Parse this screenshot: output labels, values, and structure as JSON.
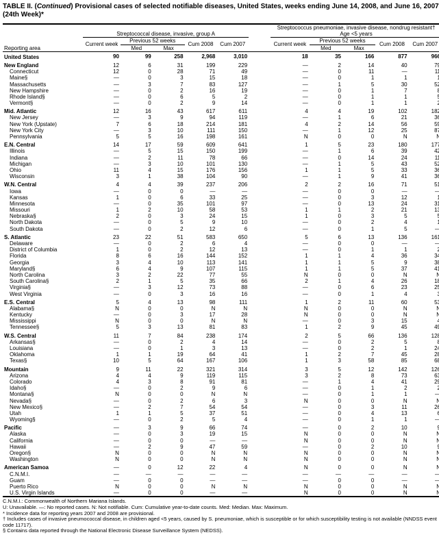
{
  "title_prefix": "TABLE II. (",
  "title_italic": "Continued",
  "title_rest": ") Provisional cases of selected notifiable diseases, United States, weeks ending June 14, 2008, and June 16, 2007 (24th Week)*",
  "disease_a": "Streptococcal disease, invasive, group A",
  "disease_b_line1": "Streptococcus pneumoniae, invasive disease, nondrug resistant†",
  "disease_b_line2": "Age <5 years",
  "col_labels": {
    "reporting": "Reporting area",
    "current": "Current week",
    "previous": "Previous 52 weeks",
    "med": "Med",
    "max": "Max",
    "cum08": "Cum 2008",
    "cum07": "Cum 2007"
  },
  "rows": [
    {
      "l": "United States",
      "a": [
        "90",
        "99",
        "258",
        "2,968",
        "3,010"
      ],
      "b": [
        "18",
        "35",
        "166",
        "877",
        "966"
      ],
      "s": 1,
      "first": 1
    },
    {
      "l": "New England",
      "a": [
        "12",
        "6",
        "31",
        "199",
        "229"
      ],
      "b": [
        "—",
        "2",
        "14",
        "40",
        "79"
      ],
      "s": 1
    },
    {
      "l": "Connecticut",
      "a": [
        "12",
        "0",
        "28",
        "71",
        "49"
      ],
      "b": [
        "—",
        "0",
        "11",
        "—",
        "11"
      ]
    },
    {
      "l": "Maine§",
      "a": [
        "—",
        "0",
        "3",
        "15",
        "18"
      ],
      "b": [
        "—",
        "0",
        "1",
        "1",
        "1"
      ]
    },
    {
      "l": "Massachusetts",
      "a": [
        "—",
        "3",
        "7",
        "83",
        "127"
      ],
      "b": [
        "—",
        "1",
        "5",
        "30",
        "52"
      ]
    },
    {
      "l": "New Hampshire",
      "a": [
        "—",
        "0",
        "2",
        "16",
        "19"
      ],
      "b": [
        "—",
        "0",
        "1",
        "7",
        "8"
      ]
    },
    {
      "l": "Rhode Island§",
      "a": [
        "—",
        "0",
        "6",
        "5",
        "2"
      ],
      "b": [
        "—",
        "0",
        "1",
        "1",
        "5"
      ]
    },
    {
      "l": "Vermont§",
      "a": [
        "—",
        "0",
        "2",
        "9",
        "14"
      ],
      "b": [
        "—",
        "0",
        "1",
        "1",
        "2"
      ]
    },
    {
      "l": "Mid. Atlantic",
      "a": [
        "12",
        "16",
        "43",
        "617",
        "611"
      ],
      "b": [
        "4",
        "4",
        "19",
        "102",
        "182"
      ],
      "s": 1
    },
    {
      "l": "New Jersey",
      "a": [
        "—",
        "3",
        "9",
        "94",
        "119"
      ],
      "b": [
        "—",
        "1",
        "6",
        "21",
        "36"
      ]
    },
    {
      "l": "New York (Upstate)",
      "a": [
        "7",
        "6",
        "18",
        "214",
        "181"
      ],
      "b": [
        "4",
        "2",
        "14",
        "56",
        "59"
      ]
    },
    {
      "l": "New York City",
      "a": [
        "—",
        "3",
        "10",
        "111",
        "150"
      ],
      "b": [
        "—",
        "1",
        "12",
        "25",
        "87"
      ]
    },
    {
      "l": "Pennsylvania",
      "a": [
        "5",
        "5",
        "16",
        "198",
        "161"
      ],
      "b": [
        "N",
        "0",
        "0",
        "N",
        "N"
      ]
    },
    {
      "l": "E.N. Central",
      "a": [
        "14",
        "17",
        "59",
        "609",
        "641"
      ],
      "b": [
        "1",
        "5",
        "23",
        "180",
        "177"
      ],
      "s": 1
    },
    {
      "l": "Illinois",
      "a": [
        "—",
        "5",
        "15",
        "150",
        "199"
      ],
      "b": [
        "—",
        "1",
        "6",
        "39",
        "42"
      ]
    },
    {
      "l": "Indiana",
      "a": [
        "—",
        "2",
        "11",
        "78",
        "66"
      ],
      "b": [
        "—",
        "0",
        "14",
        "24",
        "11"
      ]
    },
    {
      "l": "Michigan",
      "a": [
        "—",
        "3",
        "10",
        "101",
        "130"
      ],
      "b": [
        "—",
        "1",
        "5",
        "43",
        "52"
      ]
    },
    {
      "l": "Ohio",
      "a": [
        "11",
        "4",
        "15",
        "176",
        "156"
      ],
      "b": [
        "1",
        "1",
        "5",
        "33",
        "36"
      ]
    },
    {
      "l": "Wisconsin",
      "a": [
        "3",
        "1",
        "38",
        "104",
        "90"
      ],
      "b": [
        "—",
        "1",
        "9",
        "41",
        "36"
      ]
    },
    {
      "l": "W.N. Central",
      "a": [
        "4",
        "4",
        "39",
        "237",
        "206"
      ],
      "b": [
        "2",
        "2",
        "16",
        "71",
        "51"
      ],
      "s": 1
    },
    {
      "l": "Iowa",
      "a": [
        "—",
        "0",
        "0",
        "—",
        "—"
      ],
      "b": [
        "—",
        "0",
        "0",
        "—",
        "—"
      ]
    },
    {
      "l": "Kansas",
      "a": [
        "1",
        "0",
        "6",
        "33",
        "25"
      ],
      "b": [
        "—",
        "0",
        "3",
        "12",
        "1"
      ]
    },
    {
      "l": "Minnesota",
      "a": [
        "—",
        "0",
        "35",
        "101",
        "97"
      ],
      "b": [
        "—",
        "0",
        "13",
        "24",
        "31"
      ]
    },
    {
      "l": "Missouri",
      "a": [
        "1",
        "2",
        "10",
        "58",
        "53"
      ],
      "b": [
        "1",
        "1",
        "2",
        "21",
        "13"
      ]
    },
    {
      "l": "Nebraska§",
      "a": [
        "2",
        "0",
        "3",
        "24",
        "15"
      ],
      "b": [
        "1",
        "0",
        "3",
        "5",
        "5"
      ]
    },
    {
      "l": "North Dakota",
      "a": [
        "—",
        "0",
        "5",
        "9",
        "10"
      ],
      "b": [
        "—",
        "0",
        "2",
        "4",
        "1"
      ]
    },
    {
      "l": "South Dakota",
      "a": [
        "—",
        "0",
        "2",
        "12",
        "6"
      ],
      "b": [
        "—",
        "0",
        "1",
        "5",
        "—"
      ]
    },
    {
      "l": "S. Atlantic",
      "a": [
        "23",
        "22",
        "51",
        "583",
        "650"
      ],
      "b": [
        "5",
        "6",
        "13",
        "136",
        "161"
      ],
      "s": 1
    },
    {
      "l": "Delaware",
      "a": [
        "—",
        "0",
        "2",
        "6",
        "4"
      ],
      "b": [
        "—",
        "0",
        "0",
        "—",
        "—"
      ]
    },
    {
      "l": "District of Columbia",
      "a": [
        "1",
        "0",
        "2",
        "12",
        "13"
      ],
      "b": [
        "—",
        "0",
        "1",
        "1",
        "2"
      ]
    },
    {
      "l": "Florida",
      "a": [
        "8",
        "6",
        "16",
        "144",
        "152"
      ],
      "b": [
        "1",
        "1",
        "4",
        "36",
        "34"
      ]
    },
    {
      "l": "Georgia",
      "a": [
        "3",
        "4",
        "10",
        "113",
        "141"
      ],
      "b": [
        "1",
        "1",
        "5",
        "9",
        "38"
      ]
    },
    {
      "l": "Maryland§",
      "a": [
        "6",
        "4",
        "9",
        "107",
        "115"
      ],
      "b": [
        "1",
        "1",
        "5",
        "37",
        "41"
      ]
    },
    {
      "l": "North Carolina",
      "a": [
        "3",
        "2",
        "22",
        "77",
        "55"
      ],
      "b": [
        "N",
        "0",
        "0",
        "N",
        "N"
      ]
    },
    {
      "l": "South Carolina§",
      "a": [
        "2",
        "1",
        "5",
        "35",
        "66"
      ],
      "b": [
        "2",
        "1",
        "4",
        "26",
        "18"
      ]
    },
    {
      "l": "Virginia§",
      "a": [
        "—",
        "3",
        "12",
        "73",
        "88"
      ],
      "b": [
        "—",
        "0",
        "6",
        "23",
        "25"
      ]
    },
    {
      "l": "West Virginia",
      "a": [
        "—",
        "0",
        "3",
        "16",
        "16"
      ],
      "b": [
        "—",
        "0",
        "1",
        "4",
        "3"
      ]
    },
    {
      "l": "E.S. Central",
      "a": [
        "5",
        "4",
        "13",
        "98",
        "111"
      ],
      "b": [
        "1",
        "2",
        "11",
        "60",
        "53"
      ],
      "s": 1
    },
    {
      "l": "Alabama§",
      "a": [
        "N",
        "0",
        "0",
        "N",
        "N"
      ],
      "b": [
        "N",
        "0",
        "0",
        "N",
        "N"
      ]
    },
    {
      "l": "Kentucky",
      "a": [
        "—",
        "0",
        "3",
        "17",
        "28"
      ],
      "b": [
        "N",
        "0",
        "0",
        "N",
        "N"
      ]
    },
    {
      "l": "Mississippi",
      "a": [
        "N",
        "0",
        "0",
        "N",
        "N"
      ],
      "b": [
        "—",
        "0",
        "3",
        "15",
        "4"
      ]
    },
    {
      "l": "Tennessee§",
      "a": [
        "5",
        "3",
        "13",
        "81",
        "83"
      ],
      "b": [
        "1",
        "2",
        "9",
        "45",
        "49"
      ]
    },
    {
      "l": "W.S. Central",
      "a": [
        "11",
        "7",
        "84",
        "238",
        "174"
      ],
      "b": [
        "2",
        "5",
        "66",
        "136",
        "128"
      ],
      "s": 1
    },
    {
      "l": "Arkansas§",
      "a": [
        "—",
        "0",
        "2",
        "4",
        "14"
      ],
      "b": [
        "—",
        "0",
        "2",
        "5",
        "8"
      ]
    },
    {
      "l": "Louisiana",
      "a": [
        "—",
        "0",
        "1",
        "3",
        "13"
      ],
      "b": [
        "—",
        "0",
        "2",
        "1",
        "24"
      ]
    },
    {
      "l": "Oklahoma",
      "a": [
        "1",
        "1",
        "19",
        "64",
        "41"
      ],
      "b": [
        "1",
        "2",
        "7",
        "45",
        "28"
      ]
    },
    {
      "l": "Texas§",
      "a": [
        "10",
        "5",
        "64",
        "167",
        "106"
      ],
      "b": [
        "1",
        "3",
        "58",
        "85",
        "68"
      ]
    },
    {
      "l": "Mountain",
      "a": [
        "9",
        "11",
        "22",
        "321",
        "314"
      ],
      "b": [
        "3",
        "5",
        "12",
        "142",
        "126"
      ],
      "s": 1
    },
    {
      "l": "Arizona",
      "a": [
        "4",
        "4",
        "9",
        "119",
        "115"
      ],
      "b": [
        "3",
        "2",
        "8",
        "73",
        "63"
      ]
    },
    {
      "l": "Colorado",
      "a": [
        "4",
        "3",
        "8",
        "91",
        "81"
      ],
      "b": [
        "—",
        "1",
        "4",
        "41",
        "29"
      ]
    },
    {
      "l": "Idaho§",
      "a": [
        "—",
        "0",
        "2",
        "9",
        "6"
      ],
      "b": [
        "—",
        "0",
        "1",
        "2",
        "2"
      ]
    },
    {
      "l": "Montana§",
      "a": [
        "N",
        "0",
        "0",
        "N",
        "N"
      ],
      "b": [
        "—",
        "0",
        "1",
        "1",
        "—"
      ]
    },
    {
      "l": "Nevada§",
      "a": [
        "—",
        "0",
        "2",
        "6",
        "3"
      ],
      "b": [
        "N",
        "0",
        "0",
        "N",
        "N"
      ]
    },
    {
      "l": "New Mexico§",
      "a": [
        "—",
        "2",
        "7",
        "54",
        "54"
      ],
      "b": [
        "—",
        "0",
        "3",
        "11",
        "26"
      ]
    },
    {
      "l": "Utah",
      "a": [
        "1",
        "1",
        "5",
        "37",
        "51"
      ],
      "b": [
        "—",
        "0",
        "4",
        "13",
        "6"
      ]
    },
    {
      "l": "Wyoming§",
      "a": [
        "—",
        "0",
        "2",
        "5",
        "4"
      ],
      "b": [
        "—",
        "0",
        "1",
        "1",
        "—"
      ]
    },
    {
      "l": "Pacific",
      "a": [
        "—",
        "3",
        "9",
        "66",
        "74"
      ],
      "b": [
        "—",
        "0",
        "2",
        "10",
        "9"
      ],
      "s": 1
    },
    {
      "l": "Alaska",
      "a": [
        "—",
        "0",
        "3",
        "19",
        "15"
      ],
      "b": [
        "N",
        "0",
        "0",
        "N",
        "N"
      ]
    },
    {
      "l": "California",
      "a": [
        "—",
        "0",
        "0",
        "—",
        "—"
      ],
      "b": [
        "N",
        "0",
        "0",
        "N",
        "N"
      ]
    },
    {
      "l": "Hawaii",
      "a": [
        "—",
        "2",
        "9",
        "47",
        "59"
      ],
      "b": [
        "—",
        "0",
        "2",
        "10",
        "9"
      ]
    },
    {
      "l": "Oregon§",
      "a": [
        "N",
        "0",
        "0",
        "N",
        "N"
      ],
      "b": [
        "N",
        "0",
        "0",
        "N",
        "N"
      ]
    },
    {
      "l": "Washington",
      "a": [
        "N",
        "0",
        "0",
        "N",
        "N"
      ],
      "b": [
        "N",
        "0",
        "0",
        "N",
        "N"
      ]
    },
    {
      "l": "American Samoa",
      "a": [
        "—",
        "0",
        "12",
        "22",
        "4"
      ],
      "b": [
        "N",
        "0",
        "0",
        "N",
        "N"
      ],
      "s": 1
    },
    {
      "l": "C.N.M.I.",
      "a": [
        "—",
        "—",
        "—",
        "—",
        "—"
      ],
      "b": [
        "—",
        "—",
        "—",
        "—",
        "—"
      ]
    },
    {
      "l": "Guam",
      "a": [
        "—",
        "0",
        "0",
        "—",
        "—"
      ],
      "b": [
        "—",
        "0",
        "0",
        "—",
        "—"
      ]
    },
    {
      "l": "Puerto Rico",
      "a": [
        "N",
        "0",
        "0",
        "N",
        "N"
      ],
      "b": [
        "N",
        "0",
        "0",
        "N",
        "N"
      ]
    },
    {
      "l": "U.S. Virgin Islands",
      "a": [
        "—",
        "0",
        "0",
        "—",
        "—"
      ],
      "b": [
        "N",
        "0",
        "0",
        "N",
        "N"
      ]
    }
  ],
  "notes": [
    "C.N.M.I.: Commonwealth of Northern Mariana Islands.",
    "U: Unavailable.    —: No reported cases.    N: Not notifiable.    Cum: Cumulative year-to-date counts.    Med: Median.    Max: Maximum.",
    "* Incidence data for reporting years 2007 and 2008 are provisional.",
    "† Includes cases of invasive pneumococcal disease, in children aged <5 years, caused by S. pneumoniae, which is susceptible or for which susceptibility testing is not available (NNDSS event code 11717).",
    "§ Contains data reported through the National Electronic Disease Surveillance System (NEDSS)."
  ]
}
